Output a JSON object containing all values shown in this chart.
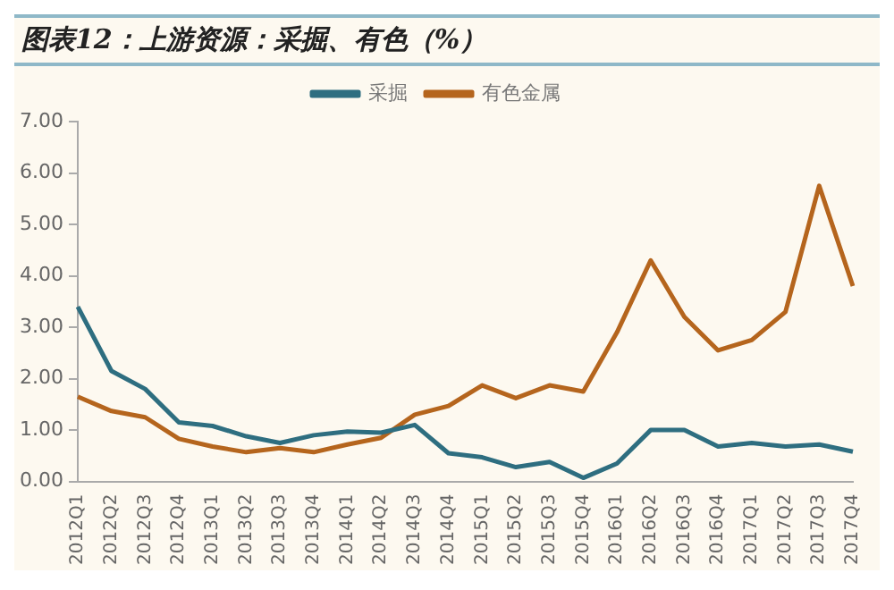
{
  "chart_data": {
    "type": "line",
    "title": "图表12：上游资源：采掘、有色（%）",
    "categories": [
      "2012Q1",
      "2012Q2",
      "2012Q3",
      "2012Q4",
      "2013Q1",
      "2013Q2",
      "2013Q3",
      "2013Q4",
      "2014Q1",
      "2014Q2",
      "2014Q3",
      "2014Q4",
      "2015Q1",
      "2015Q2",
      "2015Q3",
      "2015Q4",
      "2016Q1",
      "2016Q2",
      "2016Q3",
      "2016Q4",
      "2017Q1",
      "2017Q2",
      "2017Q3",
      "2017Q4"
    ],
    "series": [
      {
        "name": "采掘",
        "color": "#2e6e80",
        "values": [
          3.4,
          2.15,
          1.8,
          1.15,
          1.08,
          0.88,
          0.75,
          0.9,
          0.97,
          0.95,
          1.1,
          0.55,
          0.47,
          0.28,
          0.38,
          0.07,
          0.35,
          1.0,
          1.0,
          0.68,
          0.75,
          0.68,
          0.72,
          0.58
        ]
      },
      {
        "name": "有色金属",
        "color": "#b5651d",
        "values": [
          1.65,
          1.37,
          1.25,
          0.83,
          0.68,
          0.57,
          0.65,
          0.57,
          0.72,
          0.85,
          1.3,
          1.47,
          1.87,
          1.62,
          1.87,
          1.75,
          2.9,
          4.3,
          3.2,
          2.55,
          2.75,
          3.3,
          5.75,
          3.8
        ]
      }
    ],
    "ylim": [
      0,
      7
    ],
    "yticks": [
      {
        "value": 0,
        "label": "0.00"
      },
      {
        "value": 1,
        "label": "1.00"
      },
      {
        "value": 2,
        "label": "2.00"
      },
      {
        "value": 3,
        "label": "3.00"
      },
      {
        "value": 4,
        "label": "4.00"
      },
      {
        "value": 5,
        "label": "5.00"
      },
      {
        "value": 6,
        "label": "6.00"
      },
      {
        "value": 7,
        "label": "7.00"
      }
    ],
    "grid": false,
    "legend": "top",
    "marker": "none",
    "line_style": "solid"
  }
}
